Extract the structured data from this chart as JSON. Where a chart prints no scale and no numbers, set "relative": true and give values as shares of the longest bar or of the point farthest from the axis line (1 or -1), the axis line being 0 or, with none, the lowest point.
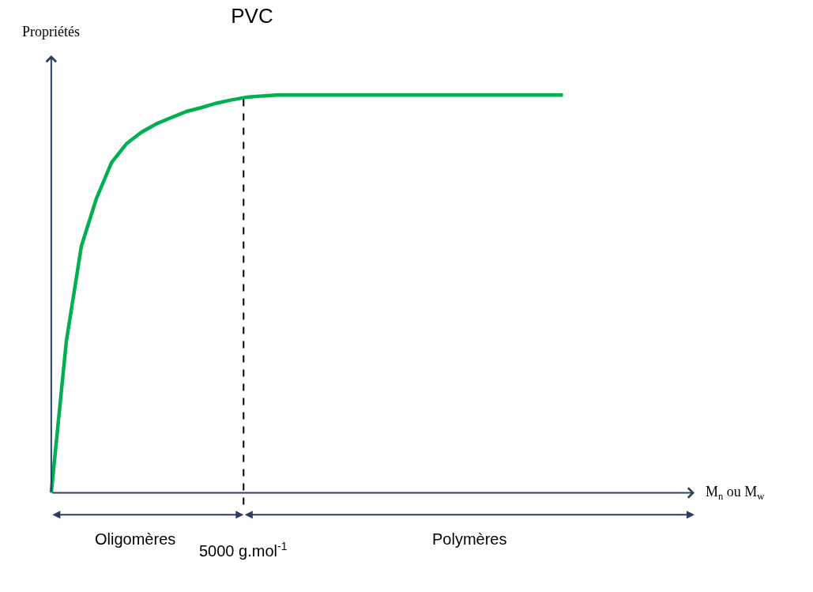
{
  "chart_data": {
    "type": "line",
    "title": "PVC",
    "ylabel": "Propriétés",
    "relative": true,
    "categories": [
      null,
      null,
      null,
      null,
      null,
      null,
      null,
      null,
      null,
      null,
      null,
      null,
      null,
      null,
      null,
      null,
      null,
      null,
      null,
      null,
      null,
      null,
      null,
      null,
      null,
      null,
      null,
      null,
      null,
      null,
      null,
      null,
      null,
      null,
      null
    ],
    "series": [
      {
        "color": "#00b050",
        "values": [
          0,
          0.38,
          0.62,
          0.74,
          0.83,
          0.878,
          0.907,
          0.928,
          0.944,
          0.959,
          0.969,
          0.98,
          0.988,
          0.995,
          0.998,
          1,
          1,
          1,
          1,
          1,
          1,
          1,
          1,
          1,
          1,
          1,
          1,
          1,
          1,
          1,
          1,
          1,
          1,
          1,
          1
        ]
      }
    ],
    "annotations": [
      "M$_{n}$ ou M$_{w}$",
      "5000 g.mol$^{-1}$",
      "Oligomères",
      "Polymères"
    ],
    "line_style": "solid"
  }
}
